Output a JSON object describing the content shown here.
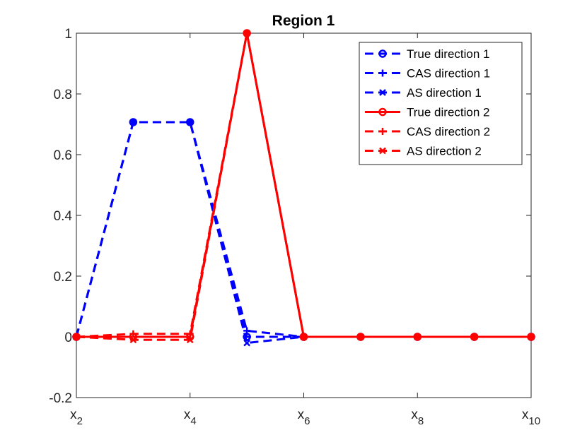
{
  "chart_data": {
    "type": "line",
    "title": "Region 1",
    "xlabel": "",
    "ylabel": "",
    "xlim": [
      2,
      10
    ],
    "ylim": [
      -0.2,
      1
    ],
    "x_ticks": [
      {
        "value": 2,
        "base": "x",
        "sub": "2"
      },
      {
        "value": 4,
        "base": "x",
        "sub": "4"
      },
      {
        "value": 6,
        "base": "x",
        "sub": "6"
      },
      {
        "value": 8,
        "base": "x",
        "sub": "8"
      },
      {
        "value": 10,
        "base": "x",
        "sub": "10"
      }
    ],
    "y_ticks": [
      {
        "value": -0.2,
        "label": "-0.2"
      },
      {
        "value": 0,
        "label": "0"
      },
      {
        "value": 0.2,
        "label": "0.2"
      },
      {
        "value": 0.4,
        "label": "0.4"
      },
      {
        "value": 0.6,
        "label": "0.6"
      },
      {
        "value": 0.8,
        "label": "0.8"
      },
      {
        "value": 1,
        "label": "1"
      }
    ],
    "grid": false,
    "legend_position": "top-right",
    "x": [
      2,
      3,
      4,
      5,
      6,
      7,
      8,
      9,
      10
    ],
    "series": [
      {
        "name": "True direction 1",
        "color": "#0000ff",
        "dash": "dashed",
        "marker": "circle",
        "values": [
          0,
          0.707,
          0.707,
          0,
          0,
          0,
          0,
          0,
          0
        ]
      },
      {
        "name": "CAS direction 1",
        "color": "#0000ff",
        "dash": "dashed",
        "marker": "plus",
        "values": [
          0,
          0.707,
          0.707,
          0.02,
          0,
          0,
          0,
          0,
          0
        ]
      },
      {
        "name": "AS direction 1",
        "color": "#0000ff",
        "dash": "dashed",
        "marker": "x",
        "values": [
          0,
          0.707,
          0.707,
          -0.02,
          0,
          0,
          0,
          0,
          0
        ]
      },
      {
        "name": "True direction 2",
        "color": "#ff0000",
        "dash": "solid",
        "marker": "circle",
        "values": [
          0,
          0,
          0,
          1,
          0,
          0,
          0,
          0,
          0
        ]
      },
      {
        "name": "CAS direction 2",
        "color": "#ff0000",
        "dash": "dashed",
        "marker": "plus",
        "values": [
          0,
          0.01,
          0.01,
          1,
          0,
          0,
          0,
          0,
          0
        ]
      },
      {
        "name": "AS direction 2",
        "color": "#ff0000",
        "dash": "dashed",
        "marker": "x",
        "values": [
          0,
          -0.01,
          -0.01,
          1,
          0,
          0,
          0,
          0,
          0
        ]
      }
    ]
  }
}
